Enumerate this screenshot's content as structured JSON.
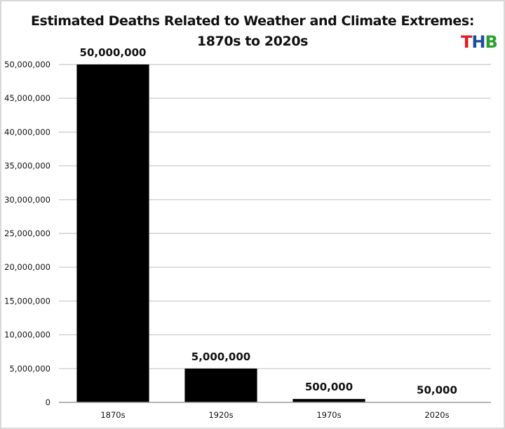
{
  "logo": {
    "letters": [
      {
        "char": "T",
        "color": "#e31b23"
      },
      {
        "char": "H",
        "color": "#1f4e9e"
      },
      {
        "char": "B",
        "color": "#2ca02c"
      }
    ]
  },
  "chart_data": {
    "type": "bar",
    "title_lines": [
      "Estimated Deaths Related to Weather and Climate Extremes:",
      "1870s to 2020s"
    ],
    "xlabel": "",
    "ylabel": "",
    "categories": [
      "1870s",
      "1920s",
      "1970s",
      "2020s"
    ],
    "values": [
      50000000,
      5000000,
      500000,
      50000
    ],
    "data_labels": [
      "50,000,000",
      "5,000,000",
      "500,000",
      "50,000"
    ],
    "ylim": [
      0,
      50000000
    ],
    "yticks": [
      0,
      5000000,
      10000000,
      15000000,
      20000000,
      25000000,
      30000000,
      35000000,
      40000000,
      45000000,
      50000000
    ],
    "ytick_labels": [
      "0",
      "5,000,000",
      "10,000,000",
      "15,000,000",
      "20,000,000",
      "25,000,000",
      "30,000,000",
      "35,000,000",
      "40,000,000",
      "45,000,000",
      "50,000,000"
    ],
    "bar_color": "#000000",
    "grid": true,
    "grid_color": "#d0d0d0",
    "legend": "none"
  }
}
